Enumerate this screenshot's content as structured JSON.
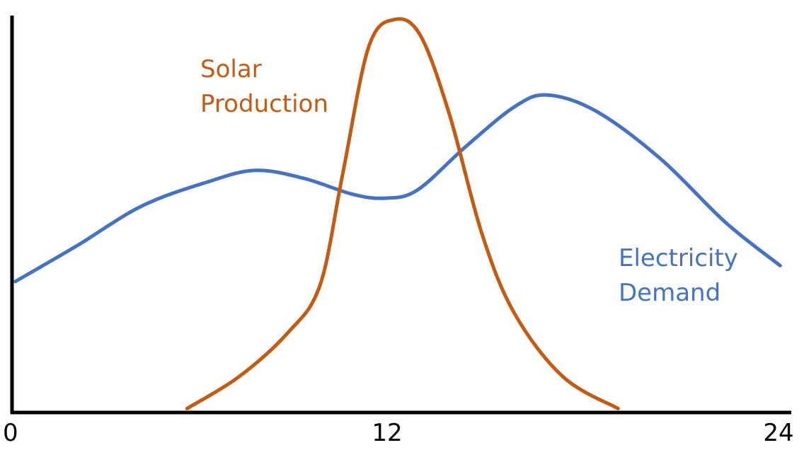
{
  "chart_data": {
    "type": "line",
    "title": "",
    "xlabel": "",
    "ylabel": "",
    "xlim": [
      0,
      24
    ],
    "ylim": [
      0,
      1
    ],
    "x_ticks": [
      "0",
      "12",
      "24"
    ],
    "grid": false,
    "legend": "none",
    "series": [
      {
        "name": "Electricity Demand",
        "label_lines": [
          "Electricity",
          "Demand"
        ],
        "color": "#4472C4",
        "points": [
          [
            0.1,
            0.33
          ],
          [
            2,
            0.42
          ],
          [
            4,
            0.52
          ],
          [
            6,
            0.58
          ],
          [
            7.5,
            0.61
          ],
          [
            9,
            0.59
          ],
          [
            10.5,
            0.55
          ],
          [
            11.5,
            0.54
          ],
          [
            12.5,
            0.56
          ],
          [
            14,
            0.67
          ],
          [
            15.5,
            0.77
          ],
          [
            16.5,
            0.8
          ],
          [
            18,
            0.76
          ],
          [
            20,
            0.64
          ],
          [
            22,
            0.48
          ],
          [
            23.7,
            0.37
          ]
        ]
      },
      {
        "name": "Solar Production",
        "label_lines": [
          "Solar",
          "Production"
        ],
        "color": "#C55A11",
        "points": [
          [
            5.4,
            0.01
          ],
          [
            7,
            0.09
          ],
          [
            8.5,
            0.2
          ],
          [
            9.5,
            0.32
          ],
          [
            10.2,
            0.6
          ],
          [
            11,
            0.92
          ],
          [
            11.8,
            0.99
          ],
          [
            12.6,
            0.95
          ],
          [
            13.5,
            0.75
          ],
          [
            14.5,
            0.45
          ],
          [
            15.5,
            0.25
          ],
          [
            17,
            0.09
          ],
          [
            18.7,
            0.01
          ]
        ]
      }
    ]
  }
}
